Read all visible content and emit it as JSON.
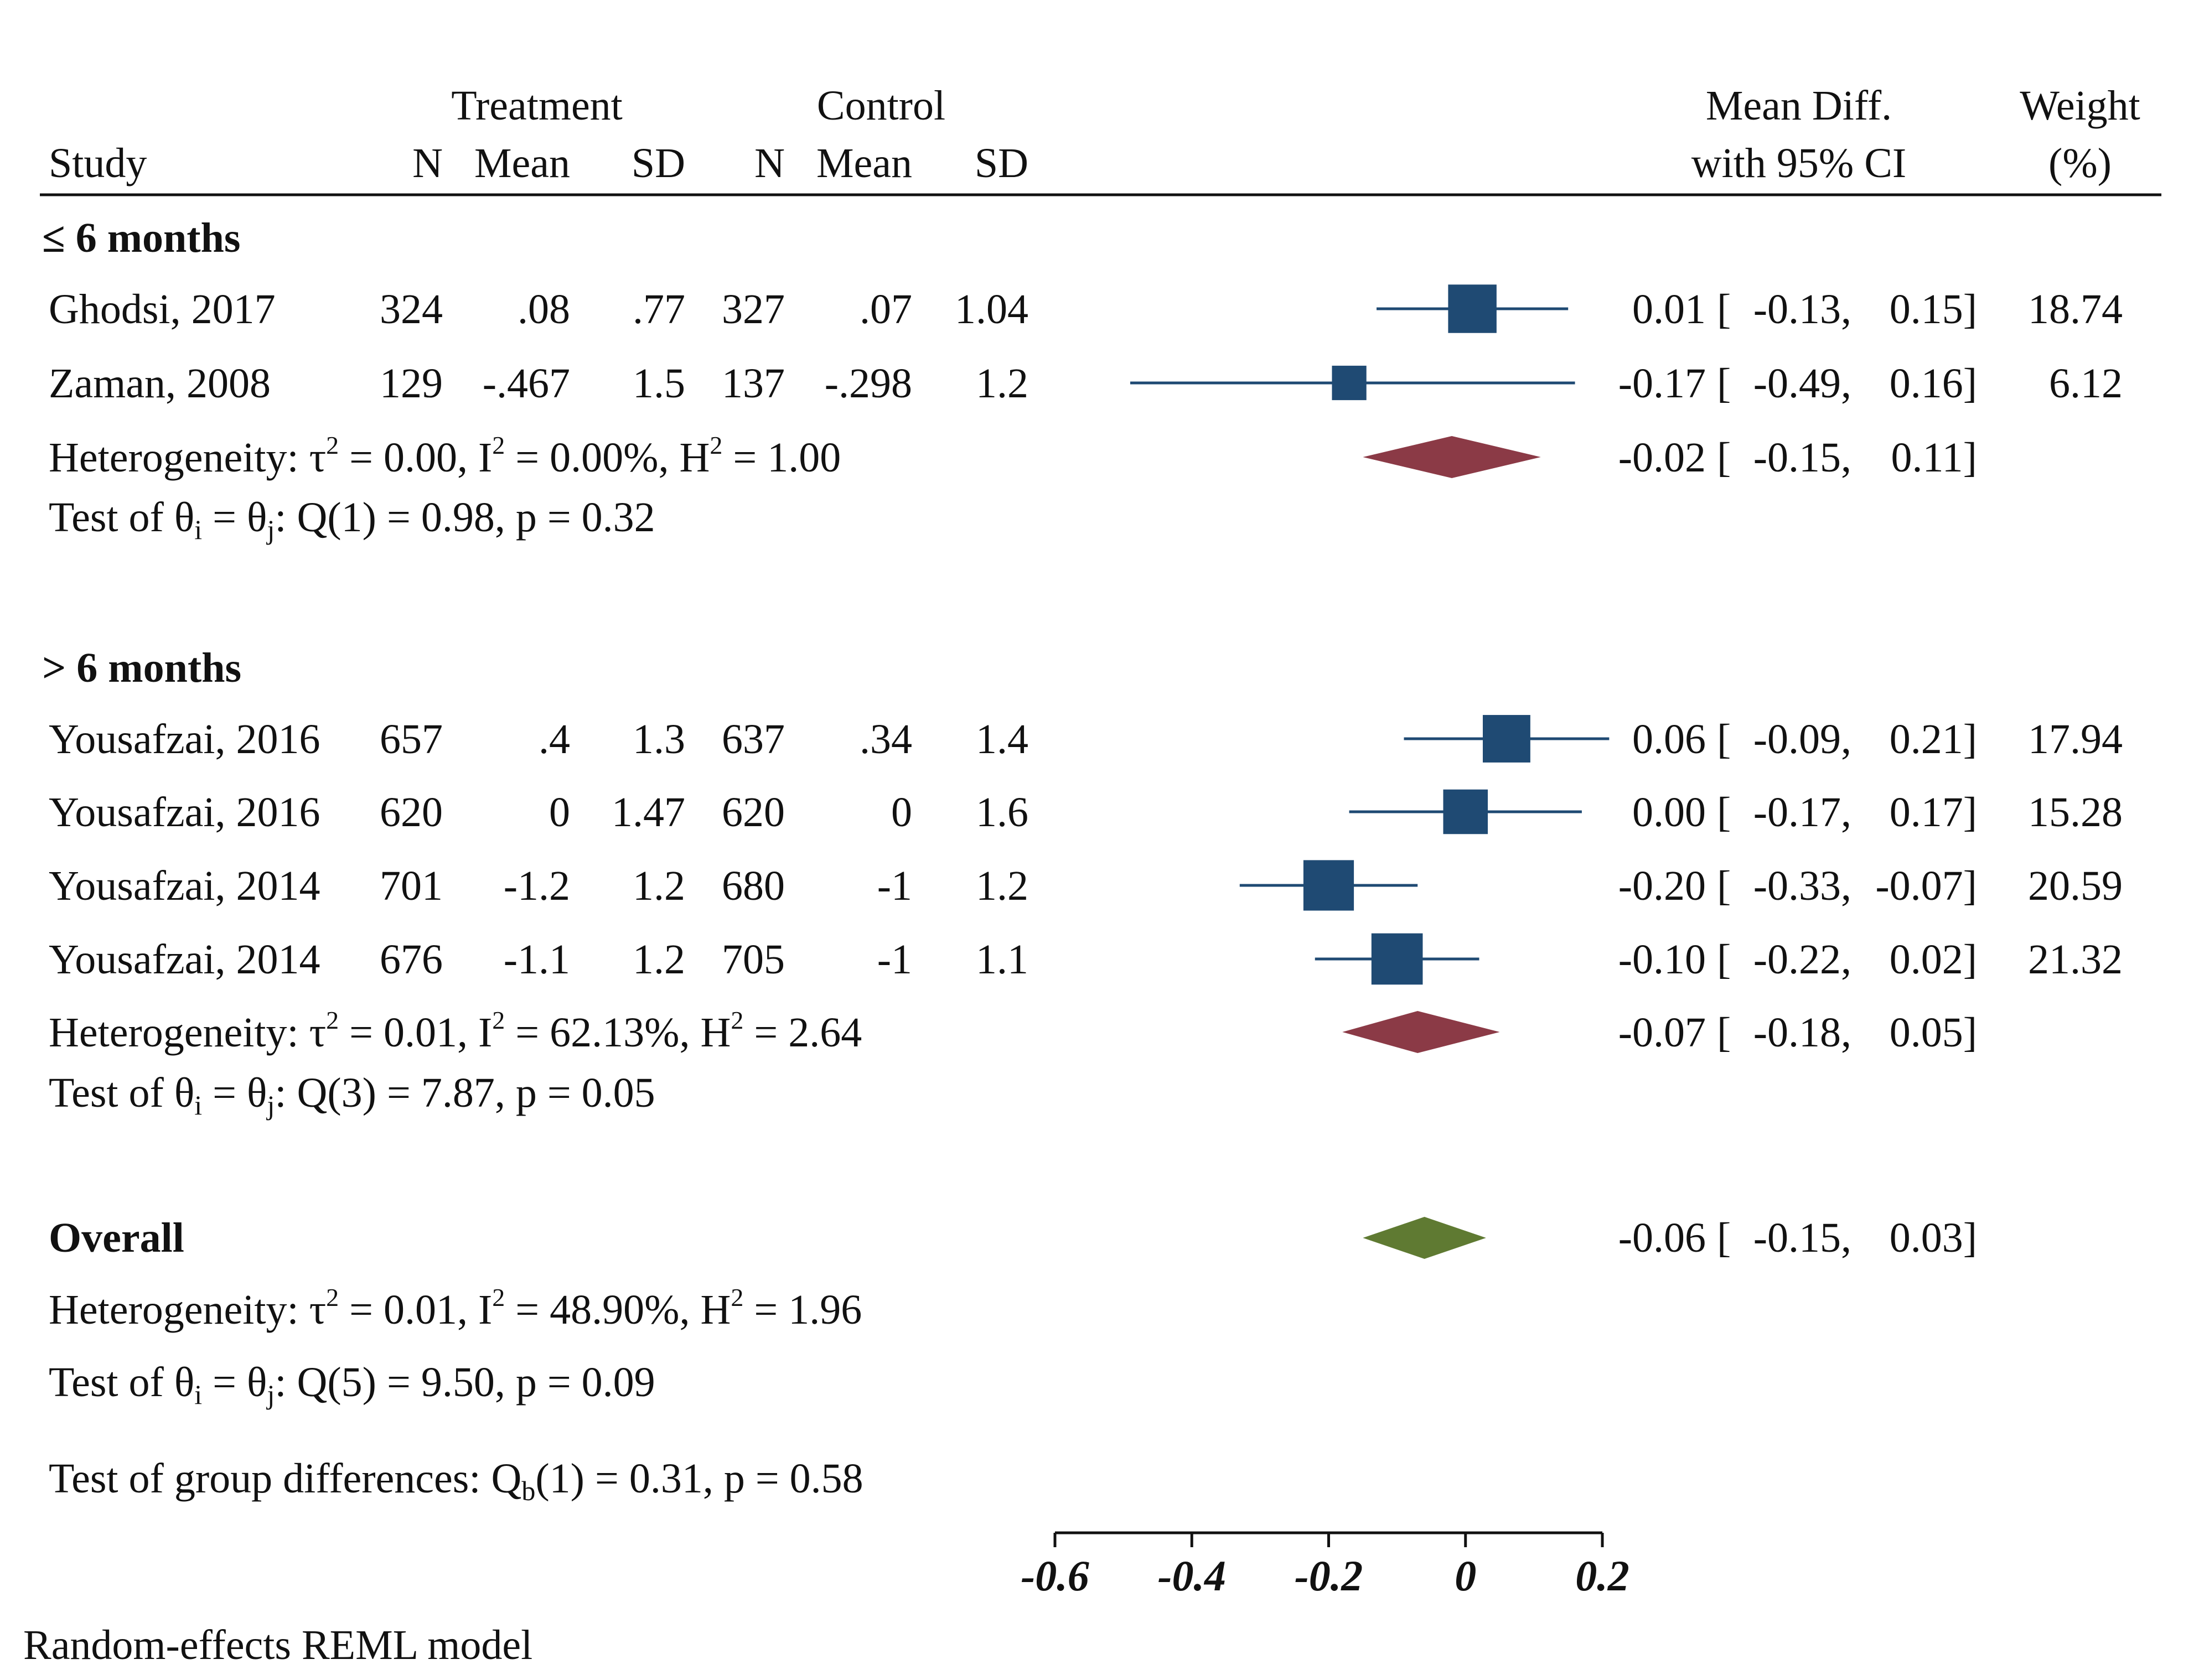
{
  "chart_data": {
    "type": "forest",
    "title": "",
    "header": {
      "treatment": "Treatment",
      "control": "Control",
      "study": "Study",
      "n": "N",
      "mean": "Mean",
      "sd": "SD",
      "md_line1": "Mean Diff.",
      "md_line2": "with 95% CI",
      "weight_line1": "Weight",
      "weight_line2": "(%)"
    },
    "subgroups": [
      {
        "label": "≤ 6 months",
        "studies": [
          {
            "name": "Ghodsi, 2017",
            "t_n": "324",
            "t_mean": ".08",
            "t_sd": ".77",
            "c_n": "327",
            "c_mean": ".07",
            "c_sd": "1.04",
            "md": 0.01,
            "lo": -0.13,
            "hi": 0.15,
            "md_text": "0.01",
            "lo_text": "-0.13",
            "hi_text": "0.15",
            "weight": "18.74"
          },
          {
            "name": "Zaman, 2008",
            "t_n": "129",
            "t_mean": "-.467",
            "t_sd": "1.5",
            "c_n": "137",
            "c_mean": "-.298",
            "c_sd": "1.2",
            "md": -0.17,
            "lo": -0.49,
            "hi": 0.16,
            "md_text": "-0.17",
            "lo_text": "-0.49",
            "hi_text": "0.16",
            "weight": "6.12"
          }
        ],
        "pooled": {
          "md": -0.02,
          "lo": -0.15,
          "hi": 0.11,
          "md_text": "-0.02",
          "lo_text": "-0.15",
          "hi_text": "0.11"
        },
        "heterogeneity": {
          "prefix": "Heterogeneity: τ",
          "tau2": " = 0.00, I",
          "i2": " = 0.00%, H",
          "h2": " = 1.00"
        },
        "test": {
          "prefix": "Test of θ",
          "mid": " = θ",
          "suffix": ": Q(1) = 0.98, p = 0.32"
        }
      },
      {
        "label": "> 6 months",
        "studies": [
          {
            "name": "Yousafzai, 2016",
            "t_n": "657",
            "t_mean": ".4",
            "t_sd": "1.3",
            "c_n": "637",
            "c_mean": ".34",
            "c_sd": "1.4",
            "md": 0.06,
            "lo": -0.09,
            "hi": 0.21,
            "md_text": "0.06",
            "lo_text": "-0.09",
            "hi_text": "0.21",
            "weight": "17.94"
          },
          {
            "name": "Yousafzai, 2016",
            "t_n": "620",
            "t_mean": "0",
            "t_sd": "1.47",
            "c_n": "620",
            "c_mean": "0",
            "c_sd": "1.6",
            "md": 0.0,
            "lo": -0.17,
            "hi": 0.17,
            "md_text": "0.00",
            "lo_text": "-0.17",
            "hi_text": "0.17",
            "weight": "15.28"
          },
          {
            "name": "Yousafzai, 2014",
            "t_n": "701",
            "t_mean": "-1.2",
            "t_sd": "1.2",
            "c_n": "680",
            "c_mean": "-1",
            "c_sd": "1.2",
            "md": -0.2,
            "lo": -0.33,
            "hi": -0.07,
            "md_text": "-0.20",
            "lo_text": "-0.33",
            "hi_text": "-0.07",
            "weight": "20.59"
          },
          {
            "name": "Yousafzai, 2014",
            "t_n": "676",
            "t_mean": "-1.1",
            "t_sd": "1.2",
            "c_n": "705",
            "c_mean": "-1",
            "c_sd": "1.1",
            "md": -0.1,
            "lo": -0.22,
            "hi": 0.02,
            "md_text": "-0.10",
            "lo_text": "-0.22",
            "hi_text": "0.02",
            "weight": "21.32"
          }
        ],
        "pooled": {
          "md": -0.07,
          "lo": -0.18,
          "hi": 0.05,
          "md_text": "-0.07",
          "lo_text": "-0.18",
          "hi_text": "0.05"
        },
        "heterogeneity": {
          "prefix": "Heterogeneity: τ",
          "tau2": " = 0.01, I",
          "i2": " = 62.13%, H",
          "h2": " = 2.64"
        },
        "test": {
          "prefix": "Test of θ",
          "mid": " = θ",
          "suffix": ": Q(3) = 7.87, p = 0.05"
        }
      }
    ],
    "overall": {
      "label": "Overall",
      "md": -0.06,
      "lo": -0.15,
      "hi": 0.03,
      "md_text": "-0.06",
      "lo_text": "-0.15",
      "hi_text": "0.03",
      "heterogeneity": {
        "prefix": "Heterogeneity: τ",
        "tau2": " = 0.01, I",
        "i2": " = 48.90%, H",
        "h2": " = 1.96"
      },
      "test": {
        "prefix": "Test of θ",
        "mid": " = θ",
        "suffix": ": Q(5) = 9.50, p = 0.09"
      }
    },
    "group_test": {
      "prefix": "Test of group differences: Q",
      "sub": "b",
      "suffix": "(1) = 0.31, p = 0.58"
    },
    "x_ticks": [
      -0.6,
      -0.4,
      -0.2,
      0,
      0.2
    ],
    "x_tick_labels": [
      "-0.6",
      "-0.4",
      "-0.2",
      "0",
      "0.2"
    ],
    "xlim": [
      -0.6,
      0.2
    ],
    "footnote": "Random-effects REML model",
    "colors": {
      "study": "#1f4a73",
      "subgroup_diamond": "#8b3a46",
      "overall_diamond": "#5f7a32",
      "ink": "#111111"
    }
  }
}
